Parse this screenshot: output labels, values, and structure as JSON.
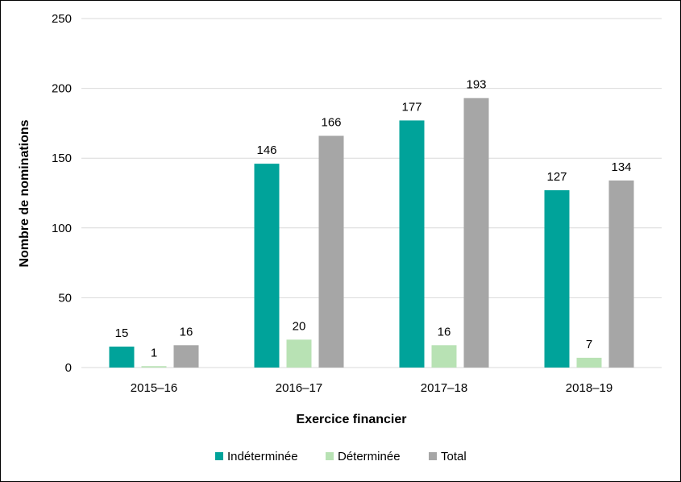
{
  "chart_data": {
    "type": "bar",
    "title": "",
    "xlabel": "Exercice financier",
    "ylabel": "Nombre de nominations",
    "categories": [
      "2015–16",
      "2016–17",
      "2017–18",
      "2018–19"
    ],
    "series": [
      {
        "name": "Indéterminée",
        "color": "#00A39A",
        "values": [
          15,
          146,
          177,
          127
        ]
      },
      {
        "name": "Déterminée",
        "color": "#B8E2B4",
        "values": [
          1,
          20,
          16,
          7
        ]
      },
      {
        "name": "Total",
        "color": "#A6A6A6",
        "values": [
          16,
          166,
          193,
          134
        ]
      }
    ],
    "ylim": [
      0,
      250
    ],
    "yticks": [
      0,
      50,
      100,
      150,
      200,
      250
    ],
    "grid": true,
    "legend_position": "bottom"
  }
}
